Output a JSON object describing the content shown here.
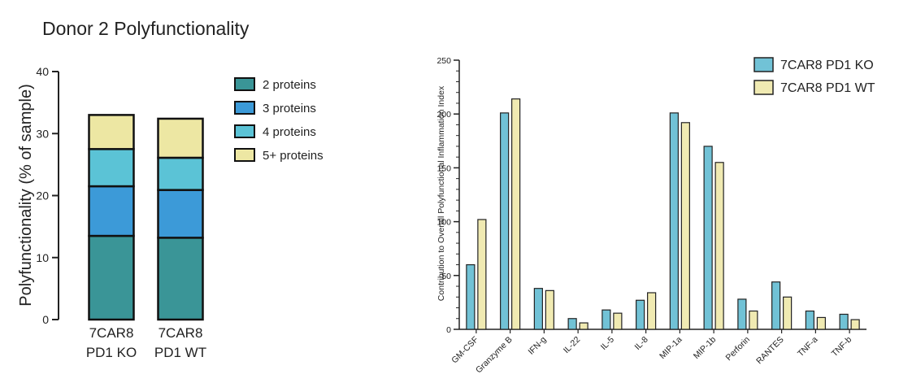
{
  "chart_data": [
    {
      "type": "bar",
      "stacked": true,
      "title": "Donor 2 Polyfunctionality",
      "ylabel": "Polyfunctionality (% of sample)",
      "ylim": [
        0,
        40
      ],
      "yticks": [
        "0",
        "10",
        "20",
        "30",
        "40"
      ],
      "categories": [
        [
          "7CAR8",
          "PD1 KO"
        ],
        [
          "7CAR8",
          "PD1 WT"
        ]
      ],
      "series": [
        {
          "name": "2 proteins",
          "color": "#3a9597",
          "values": [
            13.5,
            13.2
          ]
        },
        {
          "name": "3 proteins",
          "color": "#3c9ad8",
          "values": [
            8.0,
            7.7
          ]
        },
        {
          "name": "4 proteins",
          "color": "#5bc3d6",
          "values": [
            6.0,
            5.2
          ]
        },
        {
          "name": "5+ proteins",
          "color": "#ede7a3",
          "values": [
            5.5,
            6.3
          ]
        }
      ],
      "legend": "right",
      "grid": false
    },
    {
      "type": "bar",
      "ylabel": "Contribution to Overall Polyfunctional Inflammation Index",
      "ylim": [
        0,
        250
      ],
      "yticks": [
        "0",
        "50",
        "100",
        "150",
        "200",
        "250"
      ],
      "categories": [
        "GM-CSF",
        "Granzyme B",
        "IFN-g",
        "IL-22",
        "IL-5",
        "IL-8",
        "MIP-1a",
        "MIP-1b",
        "Perforin",
        "RANTES",
        "TNF-a",
        "TNF-b"
      ],
      "series": [
        {
          "name": "7CAR8 PD1 KO",
          "color": "#71c2d6",
          "values": [
            60,
            201,
            38,
            10,
            18,
            27,
            201,
            170,
            28,
            44,
            17,
            14
          ]
        },
        {
          "name": "7CAR8 PD1 WT",
          "color": "#f0eab2",
          "values": [
            102,
            214,
            36,
            6,
            15,
            34,
            192,
            155,
            17,
            30,
            11,
            9
          ]
        }
      ],
      "legend": "top-right",
      "grid": false
    }
  ]
}
